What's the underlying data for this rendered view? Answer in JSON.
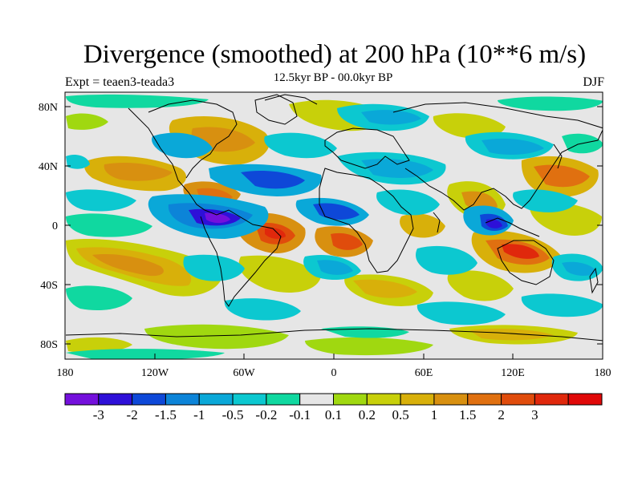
{
  "title": "Divergence (smoothed) at 200 hPa (10**6 m/s)",
  "subtitle": "12.5kyr BP - 00.0kyr BP",
  "left_label": "Expt = teaen3-teada3",
  "right_label": "DJF",
  "y_axis": {
    "ticks": [
      {
        "value": 80,
        "label": "80N"
      },
      {
        "value": 40,
        "label": "40N"
      },
      {
        "value": 0,
        "label": "0"
      },
      {
        "value": -40,
        "label": "40S"
      },
      {
        "value": -80,
        "label": "80S"
      }
    ]
  },
  "x_axis": {
    "ticks": [
      {
        "value": -180,
        "label": "180"
      },
      {
        "value": -120,
        "label": "120W"
      },
      {
        "value": -60,
        "label": "60W"
      },
      {
        "value": 0,
        "label": "0"
      },
      {
        "value": 60,
        "label": "60E"
      },
      {
        "value": 120,
        "label": "120E"
      },
      {
        "value": 180,
        "label": "180"
      }
    ]
  },
  "colorbar": {
    "colors": [
      "#7410dc",
      "#2e10d8",
      "#0e48d8",
      "#0c84d8",
      "#0aa8d8",
      "#0cc8d0",
      "#10d8a0",
      "#e6e6e6",
      "#a0d810",
      "#c8d00a",
      "#d8b00a",
      "#d89010",
      "#e07010",
      "#e04c0c",
      "#e0280c",
      "#e00808"
    ],
    "labels": [
      "-3",
      "-2",
      "-1.5",
      "-1",
      "-0.5",
      "-0.2",
      "-0.1",
      "0.1",
      "0.2",
      "0.5",
      "1",
      "1.5",
      "2",
      "3"
    ]
  },
  "map_background": "#e6e6e6"
}
